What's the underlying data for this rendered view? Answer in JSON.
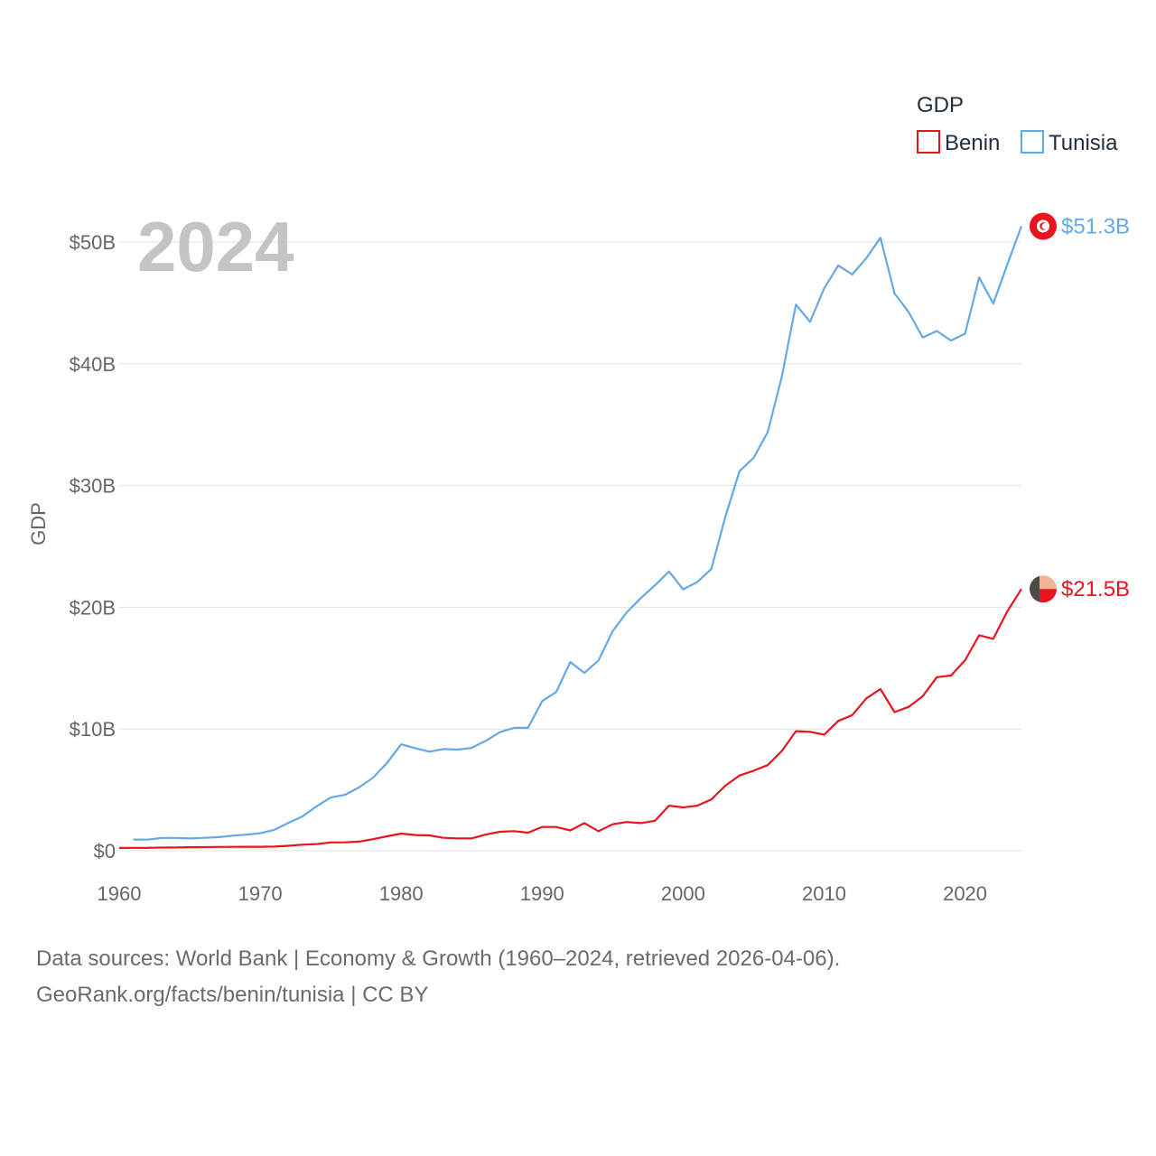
{
  "chart_data": {
    "type": "line",
    "title": "",
    "year_label": "2024",
    "xlabel": "",
    "ylabel": "GDP",
    "xlim": [
      1960,
      2024
    ],
    "ylim": [
      0,
      50
    ],
    "x_ticks": [
      1960,
      1970,
      1980,
      1990,
      2000,
      2010,
      2020
    ],
    "y_ticks": [
      {
        "value": 0,
        "label": "$0"
      },
      {
        "value": 10,
        "label": "$10B"
      },
      {
        "value": 20,
        "label": "$20B"
      },
      {
        "value": 30,
        "label": "$30B"
      },
      {
        "value": 40,
        "label": "$40B"
      },
      {
        "value": 50,
        "label": "$50B"
      }
    ],
    "legend": {
      "title": "GDP",
      "position": "top-right"
    },
    "series": [
      {
        "name": "Benin",
        "color": "#e8141e",
        "end_label": "$21.5B",
        "x": [
          1960,
          1961,
          1962,
          1963,
          1964,
          1965,
          1966,
          1967,
          1968,
          1969,
          1970,
          1971,
          1972,
          1973,
          1974,
          1975,
          1976,
          1977,
          1978,
          1979,
          1980,
          1981,
          1982,
          1983,
          1984,
          1985,
          1986,
          1987,
          1988,
          1989,
          1990,
          1991,
          1992,
          1993,
          1994,
          1995,
          1996,
          1997,
          1998,
          1999,
          2000,
          2001,
          2002,
          2003,
          2004,
          2005,
          2006,
          2007,
          2008,
          2009,
          2010,
          2011,
          2012,
          2013,
          2014,
          2015,
          2016,
          2017,
          2018,
          2019,
          2020,
          2021,
          2022,
          2023,
          2024
        ],
        "values": [
          0.23,
          0.24,
          0.24,
          0.26,
          0.27,
          0.29,
          0.3,
          0.31,
          0.32,
          0.33,
          0.33,
          0.34,
          0.41,
          0.5,
          0.55,
          0.68,
          0.69,
          0.75,
          0.95,
          1.19,
          1.41,
          1.29,
          1.26,
          1.06,
          1.02,
          1.02,
          1.33,
          1.56,
          1.61,
          1.48,
          1.96,
          1.95,
          1.67,
          2.27,
          1.6,
          2.17,
          2.36,
          2.27,
          2.46,
          3.7,
          3.56,
          3.7,
          4.21,
          5.35,
          6.18,
          6.57,
          7.03,
          8.19,
          9.82,
          9.77,
          9.53,
          10.66,
          11.14,
          12.52,
          13.28,
          11.39,
          11.82,
          12.69,
          14.26,
          14.39,
          15.65,
          17.7,
          17.4,
          19.67,
          21.5
        ]
      },
      {
        "name": "Tunisia",
        "color": "#64a8e6",
        "end_label": "$51.3B",
        "x": [
          1961,
          1962,
          1963,
          1964,
          1965,
          1966,
          1967,
          1968,
          1969,
          1970,
          1971,
          1972,
          1973,
          1974,
          1975,
          1976,
          1977,
          1978,
          1979,
          1980,
          1981,
          1982,
          1983,
          1984,
          1985,
          1986,
          1987,
          1988,
          1989,
          1990,
          1991,
          1992,
          1993,
          1994,
          1995,
          1996,
          1997,
          1998,
          1999,
          2000,
          2001,
          2002,
          2003,
          2004,
          2005,
          2006,
          2007,
          2008,
          2009,
          2010,
          2011,
          2012,
          2013,
          2014,
          2015,
          2016,
          2017,
          2018,
          2019,
          2020,
          2021,
          2022,
          2023,
          2024
        ],
        "values": [
          0.92,
          0.91,
          1.05,
          1.05,
          1.01,
          1.06,
          1.11,
          1.23,
          1.32,
          1.44,
          1.71,
          2.29,
          2.82,
          3.65,
          4.37,
          4.59,
          5.19,
          6.0,
          7.22,
          8.74,
          8.43,
          8.14,
          8.35,
          8.31,
          8.45,
          9.03,
          9.74,
          10.1,
          10.1,
          12.29,
          13.04,
          15.5,
          14.61,
          15.63,
          18.03,
          19.58,
          20.75,
          21.8,
          22.94,
          21.47,
          22.07,
          23.14,
          27.45,
          31.18,
          32.27,
          34.38,
          38.91,
          44.86,
          43.45,
          46.18,
          48.08,
          47.34,
          48.68,
          50.35,
          45.78,
          44.24,
          42.16,
          42.69,
          41.91,
          42.48,
          47.09,
          44.94,
          48.17,
          51.3
        ]
      }
    ]
  },
  "flags": {
    "benin": {
      "colors": [
        "#4a4a48",
        "#f6b391",
        "#e8141e"
      ],
      "icon": "benin-flag-icon"
    },
    "tunisia": {
      "colors": [
        "#e8141e",
        "#ffffff"
      ],
      "icon": "tunisia-flag-icon"
    }
  },
  "footer": {
    "sources": "Data sources: World Bank | Economy & Growth (1960–2024, retrieved 2026-04-06).",
    "credit": "GeoRank.org/facts/benin/tunisia | CC BY"
  }
}
